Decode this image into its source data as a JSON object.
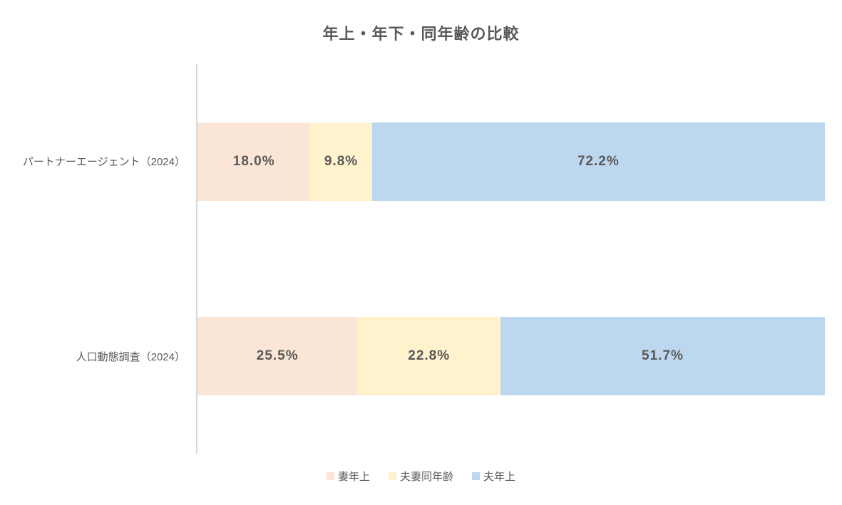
{
  "chart_data": {
    "type": "bar",
    "orientation": "horizontal",
    "stacked": true,
    "title": "年上・年下・同年齢の比較",
    "categories": [
      "パートナーエージェント（2024）",
      "人口動態調査（2024）"
    ],
    "series": [
      {
        "name": "妻年上",
        "color": "#FBE5D6",
        "values": [
          18.0,
          25.5
        ],
        "labels": [
          "18.0%",
          "25.5%"
        ]
      },
      {
        "name": "夫妻同年齢",
        "color": "#FFF2CC",
        "values": [
          9.8,
          22.8
        ],
        "labels": [
          "9.8%",
          "22.8%"
        ]
      },
      {
        "name": "夫年上",
        "color": "#BDD7EE",
        "values": [
          72.2,
          51.7
        ],
        "labels": [
          "72.2%",
          "51.7%"
        ]
      }
    ],
    "xlim": [
      0,
      100
    ],
    "grid": false,
    "legend_position": "bottom",
    "colors": {
      "text": "#595959",
      "axis_line": "#D9D9D9",
      "background": "#FFFFFF"
    }
  }
}
